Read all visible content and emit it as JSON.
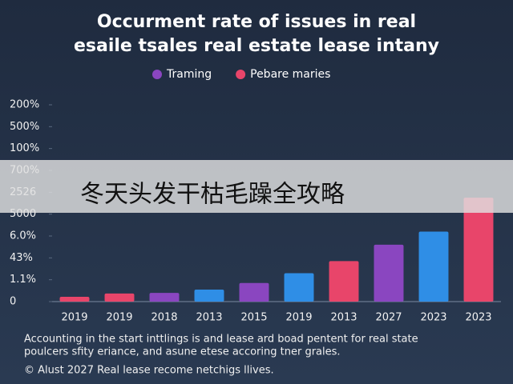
{
  "chart_data": {
    "type": "bar",
    "title": [
      "Occurment rate of issues in real",
      "esaile tsales real estate lease intany"
    ],
    "categories": [
      "2019",
      "2019",
      "2018",
      "2013",
      "2015",
      "2019",
      "2013",
      "2027",
      "2023",
      "2023"
    ],
    "values": [
      0.22,
      0.37,
      0.4,
      0.55,
      0.85,
      1.3,
      1.85,
      2.6,
      3.2,
      4.75
    ],
    "colors": [
      "#e8456a",
      "#e8456a",
      "#8a46c0",
      "#2f8ee6",
      "#8a46c0",
      "#2f8ee6",
      "#e8456a",
      "#8a46c0",
      "#2f8ee6",
      "#e8456a"
    ],
    "legend": [
      {
        "name": "Traming",
        "color": "#8a46c0"
      },
      {
        "name": "Pebare maries",
        "color": "#e8456a"
      }
    ],
    "ylim": [
      0,
      9
    ],
    "yticks": [
      0,
      {
        "value": 1,
        "label": "1.1%"
      },
      {
        "value": 2,
        "label": "43%"
      },
      {
        "value": 3,
        "label": "6.0%"
      },
      {
        "value": 4,
        "label": "5000"
      },
      {
        "value": 5,
        "label": "2526"
      },
      {
        "value": 6,
        "label": "700%"
      },
      {
        "value": 7,
        "label": "100%"
      },
      {
        "value": 8,
        "label": "500%"
      },
      {
        "value": 9,
        "label": "200%"
      }
    ],
    "notes": [
      "Accounting in the start inttlings is and lease ard boad pentent for real state",
      "poulcers sfity eriance, and asune etese accoring tner grales."
    ],
    "source": "© Alust 2027 Real lease recome netchigs llives."
  },
  "overlay_banner": "冬天头发干枯毛躁全攻略"
}
